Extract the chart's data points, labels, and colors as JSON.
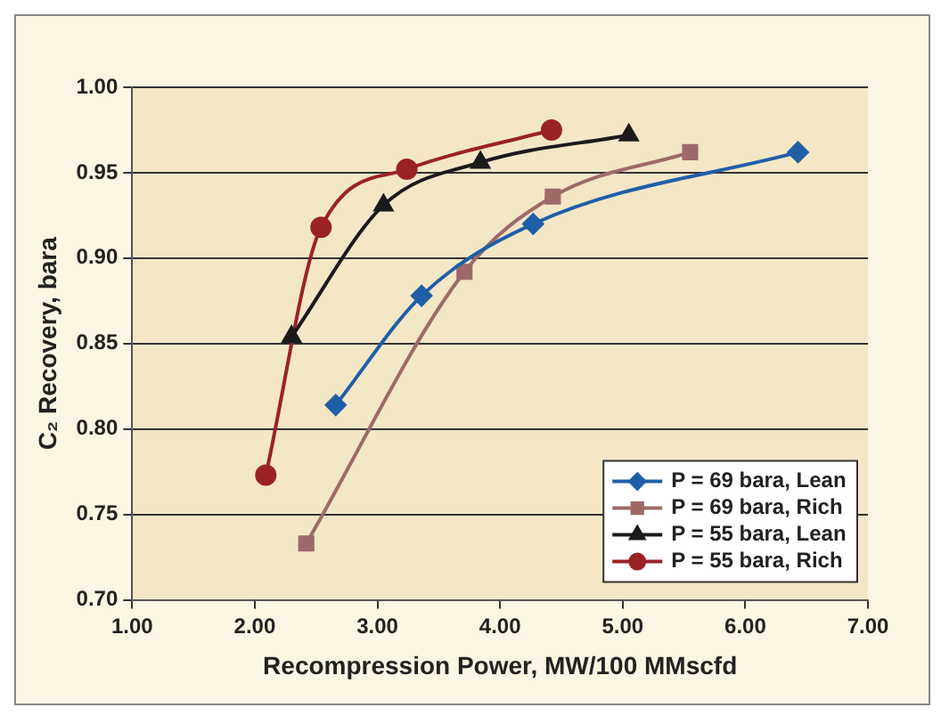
{
  "chart_data": {
    "type": "line",
    "xlabel": "Recompression Power, MW/100 MMscfd",
    "ylabel": "C₂ Recovery, bara",
    "xlim": [
      1,
      7
    ],
    "xticks": [
      {
        "value": 1,
        "label": "1.00"
      },
      {
        "value": 2,
        "label": "2.00"
      },
      {
        "value": 3,
        "label": "3.00"
      },
      {
        "value": 4,
        "label": "4.00"
      },
      {
        "value": 5,
        "label": "5.00"
      },
      {
        "value": 6,
        "label": "6.00"
      },
      {
        "value": 7,
        "label": "7.00"
      }
    ],
    "ylim": [
      0.7,
      1
    ],
    "yticks": [
      {
        "value": 0.7,
        "label": "0.70"
      },
      {
        "value": 0.75,
        "label": "0.75"
      },
      {
        "value": 0.8,
        "label": "0.80"
      },
      {
        "value": 0.85,
        "label": "0.85"
      },
      {
        "value": 0.9,
        "label": "0.90"
      },
      {
        "value": 0.95,
        "label": "0.95"
      },
      {
        "value": 1,
        "label": "1.00"
      }
    ],
    "grid": "y",
    "legend": "bottom right",
    "line_style": "solid",
    "series": [
      {
        "name": "P = 69 bara, Lean",
        "color": "#1f5fa8",
        "marker": "diamond",
        "x": [
          2.66,
          3.36,
          4.27,
          6.43
        ],
        "values": [
          0.814,
          0.878,
          0.92,
          0.962
        ]
      },
      {
        "name": "P = 69 bara, Rich",
        "color": "#9e6a68",
        "marker": "square",
        "x": [
          2.42,
          3.71,
          4.43,
          5.55
        ],
        "values": [
          0.733,
          0.892,
          0.936,
          0.962
        ]
      },
      {
        "name": "P = 55 bara, Lean",
        "color": "#1a1a1a",
        "marker": "triangle",
        "x": [
          2.3,
          3.05,
          3.84,
          5.05
        ],
        "values": [
          0.854,
          0.931,
          0.956,
          0.972
        ]
      },
      {
        "name": "P = 55 bara, Rich",
        "color": "#9b2226",
        "marker": "circle",
        "x": [
          2.09,
          2.54,
          3.24,
          4.42
        ],
        "values": [
          0.773,
          0.918,
          0.952,
          0.975
        ]
      }
    ]
  }
}
